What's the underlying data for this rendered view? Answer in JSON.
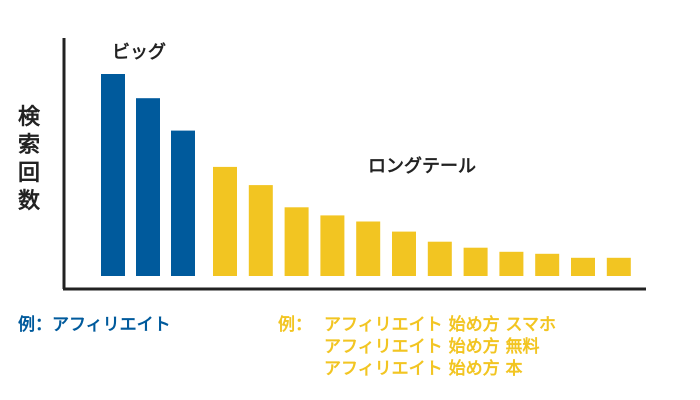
{
  "chart_data": {
    "type": "bar",
    "ylabel": "検索回数",
    "xlabel": "",
    "grid": false,
    "categories": [
      "1",
      "2",
      "3",
      "4",
      "5",
      "6",
      "7",
      "8",
      "9",
      "10",
      "11",
      "12",
      "13",
      "14",
      "15"
    ],
    "values": [
      100,
      88,
      72,
      54,
      45,
      34,
      30,
      27,
      22,
      17,
      14,
      12,
      11,
      9,
      9
    ],
    "series_groups": [
      {
        "name": "ビッグ",
        "color": "#005a9c",
        "count": 3
      },
      {
        "name": "ロングテール",
        "color": "#f2c522",
        "count": 12
      }
    ]
  },
  "examples": {
    "big": {
      "prefix": "例：",
      "text": "アフィリエイト"
    },
    "long": {
      "prefix": "例：",
      "lines": [
        "アフィリエイト 始め方 スマホ",
        "アフィリエイト 始め方 無料",
        "アフィリエイト 始め方 本"
      ]
    }
  },
  "colors": {
    "big": "#005a9c",
    "long": "#f2c522",
    "axis": "#222222"
  }
}
